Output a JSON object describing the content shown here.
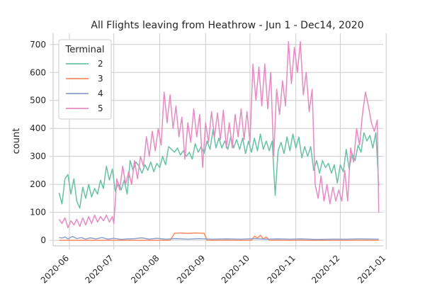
{
  "chart_data": {
    "type": "line",
    "title": "All Flights leaving from Heathrow - Jun 1 - Dec14, 2020",
    "xlabel": "",
    "ylabel": "count",
    "x_axis_type": "date",
    "xlim": [
      "2020-05-21",
      "2020-12-30"
    ],
    "ylim": [
      -20,
      740
    ],
    "grid": true,
    "legend": {
      "title": "Terminal",
      "placement": "top-left"
    },
    "x_ticks": [
      {
        "value": "2020-06-01",
        "label": "2020-06"
      },
      {
        "value": "2020-07-01",
        "label": "2020-07"
      },
      {
        "value": "2020-08-01",
        "label": "2020-08"
      },
      {
        "value": "2020-09-01",
        "label": "2020-09"
      },
      {
        "value": "2020-10-01",
        "label": "2020-10"
      },
      {
        "value": "2020-11-01",
        "label": "2020-11"
      },
      {
        "value": "2020-12-01",
        "label": "2020-12"
      },
      {
        "value": "2021-01-01",
        "label": "2021-01"
      }
    ],
    "y_ticks": [
      0,
      100,
      200,
      300,
      400,
      500,
      600,
      700
    ],
    "series": [
      {
        "name": "2",
        "color": "#66c2a5",
        "points": [
          [
            "2020-05-25",
            170
          ],
          [
            "2020-05-27",
            130
          ],
          [
            "2020-05-29",
            220
          ],
          [
            "2020-05-31",
            235
          ],
          [
            "2020-06-02",
            165
          ],
          [
            "2020-06-04",
            220
          ],
          [
            "2020-06-06",
            140
          ],
          [
            "2020-06-08",
            115
          ],
          [
            "2020-06-10",
            190
          ],
          [
            "2020-06-12",
            150
          ],
          [
            "2020-06-14",
            200
          ],
          [
            "2020-06-16",
            155
          ],
          [
            "2020-06-18",
            185
          ],
          [
            "2020-06-20",
            165
          ],
          [
            "2020-06-22",
            215
          ],
          [
            "2020-06-24",
            185
          ],
          [
            "2020-06-26",
            265
          ],
          [
            "2020-06-28",
            215
          ],
          [
            "2020-06-30",
            255
          ],
          [
            "2020-07-02",
            175
          ],
          [
            "2020-07-04",
            205
          ],
          [
            "2020-07-06",
            180
          ],
          [
            "2020-07-08",
            215
          ],
          [
            "2020-07-10",
            165
          ],
          [
            "2020-07-12",
            285
          ],
          [
            "2020-07-14",
            250
          ],
          [
            "2020-07-16",
            280
          ],
          [
            "2020-07-18",
            265
          ],
          [
            "2020-07-20",
            240
          ],
          [
            "2020-07-22",
            270
          ],
          [
            "2020-07-24",
            250
          ],
          [
            "2020-07-26",
            280
          ],
          [
            "2020-07-28",
            245
          ],
          [
            "2020-07-30",
            275
          ],
          [
            "2020-08-01",
            260
          ],
          [
            "2020-08-03",
            300
          ],
          [
            "2020-08-05",
            270
          ],
          [
            "2020-08-07",
            335
          ],
          [
            "2020-08-09",
            325
          ],
          [
            "2020-08-11",
            315
          ],
          [
            "2020-08-13",
            330
          ],
          [
            "2020-08-15",
            305
          ],
          [
            "2020-08-17",
            320
          ],
          [
            "2020-08-19",
            300
          ],
          [
            "2020-08-21",
            315
          ],
          [
            "2020-08-23",
            290
          ],
          [
            "2020-08-25",
            345
          ],
          [
            "2020-08-27",
            315
          ],
          [
            "2020-08-29",
            335
          ],
          [
            "2020-08-31",
            310
          ],
          [
            "2020-09-02",
            355
          ],
          [
            "2020-09-04",
            325
          ],
          [
            "2020-09-06",
            395
          ],
          [
            "2020-09-08",
            330
          ],
          [
            "2020-09-10",
            365
          ],
          [
            "2020-09-12",
            330
          ],
          [
            "2020-09-14",
            355
          ],
          [
            "2020-09-16",
            325
          ],
          [
            "2020-09-18",
            370
          ],
          [
            "2020-09-20",
            330
          ],
          [
            "2020-09-22",
            360
          ],
          [
            "2020-09-24",
            325
          ],
          [
            "2020-09-26",
            365
          ],
          [
            "2020-09-28",
            310
          ],
          [
            "2020-09-30",
            355
          ],
          [
            "2020-10-02",
            315
          ],
          [
            "2020-10-04",
            365
          ],
          [
            "2020-10-06",
            320
          ],
          [
            "2020-10-08",
            380
          ],
          [
            "2020-10-10",
            325
          ],
          [
            "2020-10-12",
            355
          ],
          [
            "2020-10-14",
            320
          ],
          [
            "2020-10-16",
            355
          ],
          [
            "2020-10-18",
            160
          ],
          [
            "2020-10-20",
            320
          ],
          [
            "2020-10-22",
            350
          ],
          [
            "2020-10-24",
            310
          ],
          [
            "2020-10-26",
            370
          ],
          [
            "2020-10-28",
            320
          ],
          [
            "2020-10-30",
            380
          ],
          [
            "2020-11-01",
            330
          ],
          [
            "2020-11-03",
            370
          ],
          [
            "2020-11-05",
            295
          ],
          [
            "2020-11-07",
            335
          ],
          [
            "2020-11-09",
            300
          ],
          [
            "2020-11-11",
            335
          ],
          [
            "2020-11-13",
            250
          ],
          [
            "2020-11-15",
            285
          ],
          [
            "2020-11-17",
            240
          ],
          [
            "2020-11-19",
            285
          ],
          [
            "2020-11-21",
            260
          ],
          [
            "2020-11-23",
            275
          ],
          [
            "2020-11-25",
            240
          ],
          [
            "2020-11-27",
            270
          ],
          [
            "2020-11-29",
            205
          ],
          [
            "2020-12-01",
            270
          ],
          [
            "2020-12-03",
            245
          ],
          [
            "2020-12-05",
            325
          ],
          [
            "2020-12-07",
            255
          ],
          [
            "2020-12-09",
            310
          ],
          [
            "2020-12-11",
            285
          ],
          [
            "2020-12-13",
            340
          ],
          [
            "2020-12-15",
            315
          ],
          [
            "2020-12-17",
            385
          ],
          [
            "2020-12-19",
            355
          ],
          [
            "2020-12-21",
            375
          ],
          [
            "2020-12-23",
            330
          ],
          [
            "2020-12-25",
            385
          ],
          [
            "2020-12-27",
            195
          ]
        ]
      },
      {
        "name": "3",
        "color": "#fc8d62",
        "points": [
          [
            "2020-05-25",
            0
          ],
          [
            "2020-06-15",
            0
          ],
          [
            "2020-07-15",
            0
          ],
          [
            "2020-08-08",
            0
          ],
          [
            "2020-08-11",
            25
          ],
          [
            "2020-08-15",
            26
          ],
          [
            "2020-08-20",
            25
          ],
          [
            "2020-08-25",
            26
          ],
          [
            "2020-08-31",
            25
          ],
          [
            "2020-09-02",
            0
          ],
          [
            "2020-09-20",
            0
          ],
          [
            "2020-10-02",
            0
          ],
          [
            "2020-10-04",
            15
          ],
          [
            "2020-10-06",
            8
          ],
          [
            "2020-10-08",
            18
          ],
          [
            "2020-10-10",
            5
          ],
          [
            "2020-10-12",
            12
          ],
          [
            "2020-10-14",
            0
          ],
          [
            "2020-11-15",
            0
          ],
          [
            "2020-12-27",
            0
          ]
        ]
      },
      {
        "name": "4",
        "color": "#8da0cb",
        "points": [
          [
            "2020-05-25",
            10
          ],
          [
            "2020-05-27",
            8
          ],
          [
            "2020-05-29",
            12
          ],
          [
            "2020-05-31",
            5
          ],
          [
            "2020-06-03",
            14
          ],
          [
            "2020-06-06",
            6
          ],
          [
            "2020-06-09",
            10
          ],
          [
            "2020-06-12",
            4
          ],
          [
            "2020-06-15",
            9
          ],
          [
            "2020-06-19",
            5
          ],
          [
            "2020-06-23",
            10
          ],
          [
            "2020-06-27",
            4
          ],
          [
            "2020-07-01",
            7
          ],
          [
            "2020-07-06",
            3
          ],
          [
            "2020-07-10",
            5
          ],
          [
            "2020-07-15",
            6
          ],
          [
            "2020-07-20",
            9
          ],
          [
            "2020-07-25",
            4
          ],
          [
            "2020-07-30",
            7
          ],
          [
            "2020-08-05",
            4
          ],
          [
            "2020-08-12",
            6
          ],
          [
            "2020-08-20",
            4
          ],
          [
            "2020-08-28",
            6
          ],
          [
            "2020-09-05",
            4
          ],
          [
            "2020-09-15",
            5
          ],
          [
            "2020-09-25",
            4
          ],
          [
            "2020-10-05",
            6
          ],
          [
            "2020-10-12",
            4
          ],
          [
            "2020-10-20",
            5
          ],
          [
            "2020-10-28",
            4
          ],
          [
            "2020-11-05",
            5
          ],
          [
            "2020-11-15",
            3
          ],
          [
            "2020-11-25",
            4
          ],
          [
            "2020-12-05",
            4
          ],
          [
            "2020-12-15",
            5
          ],
          [
            "2020-12-27",
            4
          ]
        ]
      },
      {
        "name": "5",
        "color": "#e78ac3",
        "points": [
          [
            "2020-05-25",
            75
          ],
          [
            "2020-05-27",
            60
          ],
          [
            "2020-05-29",
            80
          ],
          [
            "2020-05-31",
            45
          ],
          [
            "2020-06-02",
            70
          ],
          [
            "2020-06-04",
            55
          ],
          [
            "2020-06-06",
            75
          ],
          [
            "2020-06-08",
            50
          ],
          [
            "2020-06-10",
            80
          ],
          [
            "2020-06-12",
            55
          ],
          [
            "2020-06-14",
            85
          ],
          [
            "2020-06-16",
            60
          ],
          [
            "2020-06-18",
            90
          ],
          [
            "2020-06-20",
            65
          ],
          [
            "2020-06-22",
            85
          ],
          [
            "2020-06-24",
            70
          ],
          [
            "2020-06-26",
            90
          ],
          [
            "2020-06-28",
            65
          ],
          [
            "2020-06-30",
            85
          ],
          [
            "2020-07-01",
            60
          ],
          [
            "2020-07-03",
            220
          ],
          [
            "2020-07-05",
            180
          ],
          [
            "2020-07-07",
            265
          ],
          [
            "2020-07-09",
            200
          ],
          [
            "2020-07-11",
            245
          ],
          [
            "2020-07-13",
            200
          ],
          [
            "2020-07-15",
            285
          ],
          [
            "2020-07-17",
            220
          ],
          [
            "2020-07-19",
            300
          ],
          [
            "2020-07-21",
            265
          ],
          [
            "2020-07-23",
            370
          ],
          [
            "2020-07-25",
            300
          ],
          [
            "2020-07-27",
            390
          ],
          [
            "2020-07-29",
            320
          ],
          [
            "2020-07-31",
            400
          ],
          [
            "2020-08-02",
            340
          ],
          [
            "2020-08-04",
            530
          ],
          [
            "2020-08-06",
            420
          ],
          [
            "2020-08-08",
            520
          ],
          [
            "2020-08-10",
            400
          ],
          [
            "2020-08-12",
            480
          ],
          [
            "2020-08-14",
            370
          ],
          [
            "2020-08-16",
            440
          ],
          [
            "2020-08-18",
            290
          ],
          [
            "2020-08-20",
            420
          ],
          [
            "2020-08-22",
            350
          ],
          [
            "2020-08-24",
            470
          ],
          [
            "2020-08-26",
            370
          ],
          [
            "2020-08-28",
            450
          ],
          [
            "2020-08-30",
            260
          ],
          [
            "2020-09-01",
            420
          ],
          [
            "2020-09-03",
            350
          ],
          [
            "2020-09-05",
            460
          ],
          [
            "2020-09-07",
            370
          ],
          [
            "2020-09-09",
            455
          ],
          [
            "2020-09-11",
            360
          ],
          [
            "2020-09-13",
            465
          ],
          [
            "2020-09-15",
            330
          ],
          [
            "2020-09-17",
            420
          ],
          [
            "2020-09-19",
            330
          ],
          [
            "2020-09-21",
            450
          ],
          [
            "2020-09-23",
            370
          ],
          [
            "2020-09-25",
            470
          ],
          [
            "2020-09-27",
            360
          ],
          [
            "2020-09-29",
            460
          ],
          [
            "2020-10-01",
            350
          ],
          [
            "2020-10-03",
            630
          ],
          [
            "2020-10-05",
            500
          ],
          [
            "2020-10-07",
            620
          ],
          [
            "2020-10-09",
            480
          ],
          [
            "2020-10-11",
            630
          ],
          [
            "2020-10-13",
            470
          ],
          [
            "2020-10-15",
            600
          ],
          [
            "2020-10-17",
            300
          ],
          [
            "2020-10-19",
            540
          ],
          [
            "2020-10-21",
            450
          ],
          [
            "2020-10-23",
            570
          ],
          [
            "2020-10-25",
            480
          ],
          [
            "2020-10-27",
            710
          ],
          [
            "2020-10-29",
            560
          ],
          [
            "2020-10-31",
            690
          ],
          [
            "2020-11-02",
            600
          ],
          [
            "2020-11-04",
            710
          ],
          [
            "2020-11-06",
            520
          ],
          [
            "2020-11-08",
            600
          ],
          [
            "2020-11-10",
            460
          ],
          [
            "2020-11-12",
            540
          ],
          [
            "2020-11-14",
            200
          ],
          [
            "2020-11-16",
            150
          ],
          [
            "2020-11-18",
            230
          ],
          [
            "2020-11-20",
            140
          ],
          [
            "2020-11-22",
            200
          ],
          [
            "2020-11-24",
            130
          ],
          [
            "2020-11-26",
            190
          ],
          [
            "2020-11-28",
            140
          ],
          [
            "2020-11-30",
            180
          ],
          [
            "2020-12-02",
            140
          ],
          [
            "2020-12-04",
            250
          ],
          [
            "2020-12-06",
            140
          ],
          [
            "2020-12-08",
            330
          ],
          [
            "2020-12-10",
            280
          ],
          [
            "2020-12-12",
            400
          ],
          [
            "2020-12-14",
            340
          ],
          [
            "2020-12-16",
            450
          ],
          [
            "2020-12-18",
            530
          ],
          [
            "2020-12-20",
            480
          ],
          [
            "2020-12-22",
            420
          ],
          [
            "2020-12-24",
            390
          ],
          [
            "2020-12-26",
            430
          ],
          [
            "2020-12-27",
            100
          ]
        ]
      }
    ]
  }
}
